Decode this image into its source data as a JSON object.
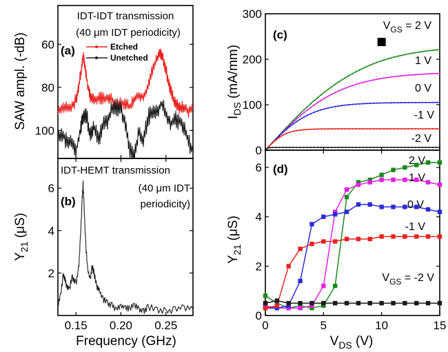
{
  "chart_data": [
    {
      "id": "a",
      "type": "line",
      "panel_label": "(a)",
      "title_lines": [
        "IDT-IDT transmission",
        "(40 μm IDT periodicity)"
      ],
      "ylabel": "SAW ampl. (-dB)",
      "ylim": [
        113,
        42
      ],
      "xlim": [
        0.13,
        0.28
      ],
      "yticks": [
        {
          "v": 60,
          "label": "60"
        },
        {
          "v": 80,
          "label": "80"
        },
        {
          "v": 100,
          "label": "100"
        }
      ],
      "legend_position": "top-center",
      "series": [
        {
          "name": "Etched",
          "color": "#e8231f",
          "x": [
            0.13,
            0.135,
            0.14,
            0.145,
            0.15,
            0.153,
            0.156,
            0.158,
            0.16,
            0.163,
            0.166,
            0.17,
            0.175,
            0.18,
            0.185,
            0.19,
            0.195,
            0.2,
            0.205,
            0.21,
            0.215,
            0.22,
            0.225,
            0.23,
            0.235,
            0.24,
            0.243,
            0.246,
            0.25,
            0.254,
            0.258,
            0.262,
            0.266,
            0.27,
            0.275,
            0.28
          ],
          "y": [
            91,
            90,
            89,
            89,
            86,
            80,
            72,
            66,
            70,
            79,
            84,
            86,
            85,
            85,
            85,
            86,
            89,
            87,
            88,
            89,
            85,
            84,
            84,
            80,
            72,
            67,
            64,
            66,
            72,
            80,
            85,
            88,
            90,
            89,
            91,
            90
          ]
        },
        {
          "name": "Unetched",
          "color": "#1a1a1a",
          "x": [
            0.13,
            0.135,
            0.14,
            0.145,
            0.15,
            0.155,
            0.158,
            0.162,
            0.166,
            0.17,
            0.175,
            0.18,
            0.185,
            0.19,
            0.195,
            0.2,
            0.205,
            0.21,
            0.215,
            0.22,
            0.225,
            0.23,
            0.235,
            0.24,
            0.245,
            0.25,
            0.255,
            0.26,
            0.265,
            0.27,
            0.275,
            0.28
          ],
          "y": [
            103,
            101,
            106,
            104,
            110,
            100,
            94,
            93,
            103,
            98,
            105,
            98,
            96,
            90,
            89,
            90,
            98,
            109,
            112,
            100,
            105,
            94,
            92,
            92,
            87,
            92,
            97,
            95,
            96,
            98,
            105,
            110
          ]
        }
      ]
    },
    {
      "id": "b",
      "type": "line",
      "panel_label": "(b)",
      "title_lines": [
        "IDT-HEMT transmission"
      ],
      "annotation_lines": [
        "(40 μm IDT",
        "periodicity)"
      ],
      "ylabel": "Y21 (μS)",
      "xlabel": "Frequency (GHz)",
      "xlim": [
        0.13,
        0.28
      ],
      "ylim": [
        0,
        7.4
      ],
      "xticks": [
        {
          "v": 0.15,
          "label": "0.15"
        },
        {
          "v": 0.2,
          "label": "0.20"
        },
        {
          "v": 0.25,
          "label": "0.25"
        }
      ],
      "yticks": [
        {
          "v": 2,
          "label": "2"
        },
        {
          "v": 4,
          "label": "4"
        },
        {
          "v": 6,
          "label": "6"
        }
      ],
      "series": [
        {
          "name": "",
          "color": "#1a1a1a",
          "x": [
            0.13,
            0.133,
            0.136,
            0.138,
            0.14,
            0.143,
            0.146,
            0.15,
            0.153,
            0.155,
            0.157,
            0.158,
            0.159,
            0.161,
            0.163,
            0.166,
            0.168,
            0.17,
            0.173,
            0.176,
            0.18,
            0.185,
            0.19,
            0.195,
            0.2,
            0.205,
            0.21,
            0.215,
            0.22,
            0.225,
            0.23,
            0.24,
            0.25,
            0.26,
            0.27,
            0.28
          ],
          "y": [
            0.5,
            1.0,
            1.9,
            1.7,
            1.3,
            1.3,
            1.8,
            1.5,
            2.2,
            3.6,
            5.5,
            6.2,
            5.2,
            3.3,
            2.2,
            1.7,
            2.3,
            2.0,
            1.4,
            1.2,
            0.8,
            0.6,
            0.5,
            0.3,
            0.4,
            0.4,
            0.3,
            0.5,
            0.3,
            0.2,
            0.4,
            0.3,
            0.2,
            0.3,
            0.4,
            0.3
          ]
        }
      ]
    },
    {
      "id": "c",
      "type": "line",
      "panel_label": "(c)",
      "ylabel": "IDS (mA/mm)",
      "xlim": [
        0,
        15
      ],
      "ylim": [
        0,
        300
      ],
      "yticks": [
        {
          "v": 0,
          "label": "0"
        },
        {
          "v": 100,
          "label": "100"
        },
        {
          "v": 200,
          "label": "200"
        },
        {
          "v": 300,
          "label": "300"
        }
      ],
      "marker": {
        "x": 10,
        "y": 238
      },
      "series": [
        {
          "name": "VGS = 2 V",
          "label_main": "V",
          "label_sub": "GS",
          "label_rest": " = 2 V",
          "color": "#1a8a1a",
          "sat": 238,
          "ron_slope": 28
        },
        {
          "name": "1 V",
          "color": "#e020e0",
          "sat": 172,
          "ron_slope": 27
        },
        {
          "name": "0 V",
          "color": "#2b2bd8",
          "sat": 105,
          "ron_slope": 27
        },
        {
          "name": "-1 V",
          "color": "#e8231f",
          "sat": 47,
          "ron_slope": 27
        },
        {
          "name": "-2 V",
          "color": "#1a1a1a",
          "sat": 6,
          "ron_slope": 27
        }
      ]
    },
    {
      "id": "d",
      "type": "line",
      "panel_label": "(d)",
      "ylabel": "Y21 (μS)",
      "xlabel": "VDS (V)",
      "xlim": [
        0,
        15
      ],
      "ylim": [
        0,
        6.7
      ],
      "xticks": [
        {
          "v": 0,
          "label": "0"
        },
        {
          "v": 5,
          "label": "5"
        },
        {
          "v": 10,
          "label": "10"
        },
        {
          "v": 15,
          "label": "15"
        }
      ],
      "yticks": [
        {
          "v": 0,
          "label": "0"
        },
        {
          "v": 2,
          "label": "2"
        },
        {
          "v": 4,
          "label": "4"
        },
        {
          "v": 6,
          "label": "6"
        }
      ],
      "series": [
        {
          "name": "2 V",
          "color": "#1a8a1a",
          "x": [
            0,
            1,
            2,
            3,
            4,
            5,
            6,
            7,
            8,
            9,
            10,
            11,
            12,
            13,
            14,
            15
          ],
          "y": [
            0.8,
            0.5,
            0.3,
            0.4,
            0.3,
            0.4,
            1.2,
            4.8,
            5.4,
            5.5,
            5.7,
            5.9,
            6.0,
            6.1,
            6.2,
            6.2
          ]
        },
        {
          "name": "1 V",
          "color": "#e020e0",
          "x": [
            0,
            1,
            2,
            3,
            4,
            5,
            6,
            7,
            8,
            9,
            10,
            11,
            12,
            13,
            14,
            15
          ],
          "y": [
            0.4,
            0.3,
            0.3,
            0.3,
            0.4,
            1.2,
            4.2,
            5.1,
            5.3,
            5.4,
            5.5,
            5.5,
            5.5,
            5.5,
            5.4,
            5.3
          ]
        },
        {
          "name": "0 V",
          "color": "#2b2bd8",
          "x": [
            0,
            1,
            2,
            3,
            4,
            5,
            6,
            7,
            8,
            9,
            10,
            11,
            12,
            13,
            14,
            15
          ],
          "y": [
            0.3,
            0.3,
            0.4,
            1.4,
            3.7,
            4.0,
            4.1,
            4.2,
            4.5,
            4.5,
            4.4,
            4.4,
            4.4,
            4.4,
            4.3,
            4.2
          ]
        },
        {
          "name": "-1 V",
          "color": "#e8231f",
          "x": [
            0,
            1,
            2,
            3,
            4,
            5,
            6,
            7,
            8,
            9,
            10,
            11,
            12,
            13,
            14,
            15
          ],
          "y": [
            0.3,
            0.4,
            2.0,
            2.7,
            2.9,
            3.0,
            3.0,
            3.1,
            3.1,
            3.1,
            3.2,
            3.2,
            3.2,
            3.2,
            3.2,
            3.2
          ]
        },
        {
          "name": "VGS = -2 V",
          "label_main": "V",
          "label_sub": "GS",
          "label_rest": " = -2 V",
          "color": "#1a1a1a",
          "x": [
            0,
            1,
            2,
            3,
            4,
            5,
            6,
            7,
            8,
            9,
            10,
            11,
            12,
            13,
            14,
            15
          ],
          "y": [
            0.5,
            0.6,
            0.5,
            0.5,
            0.5,
            0.5,
            0.5,
            0.5,
            0.5,
            0.5,
            0.5,
            0.5,
            0.5,
            0.5,
            0.5,
            0.5
          ]
        }
      ]
    }
  ]
}
